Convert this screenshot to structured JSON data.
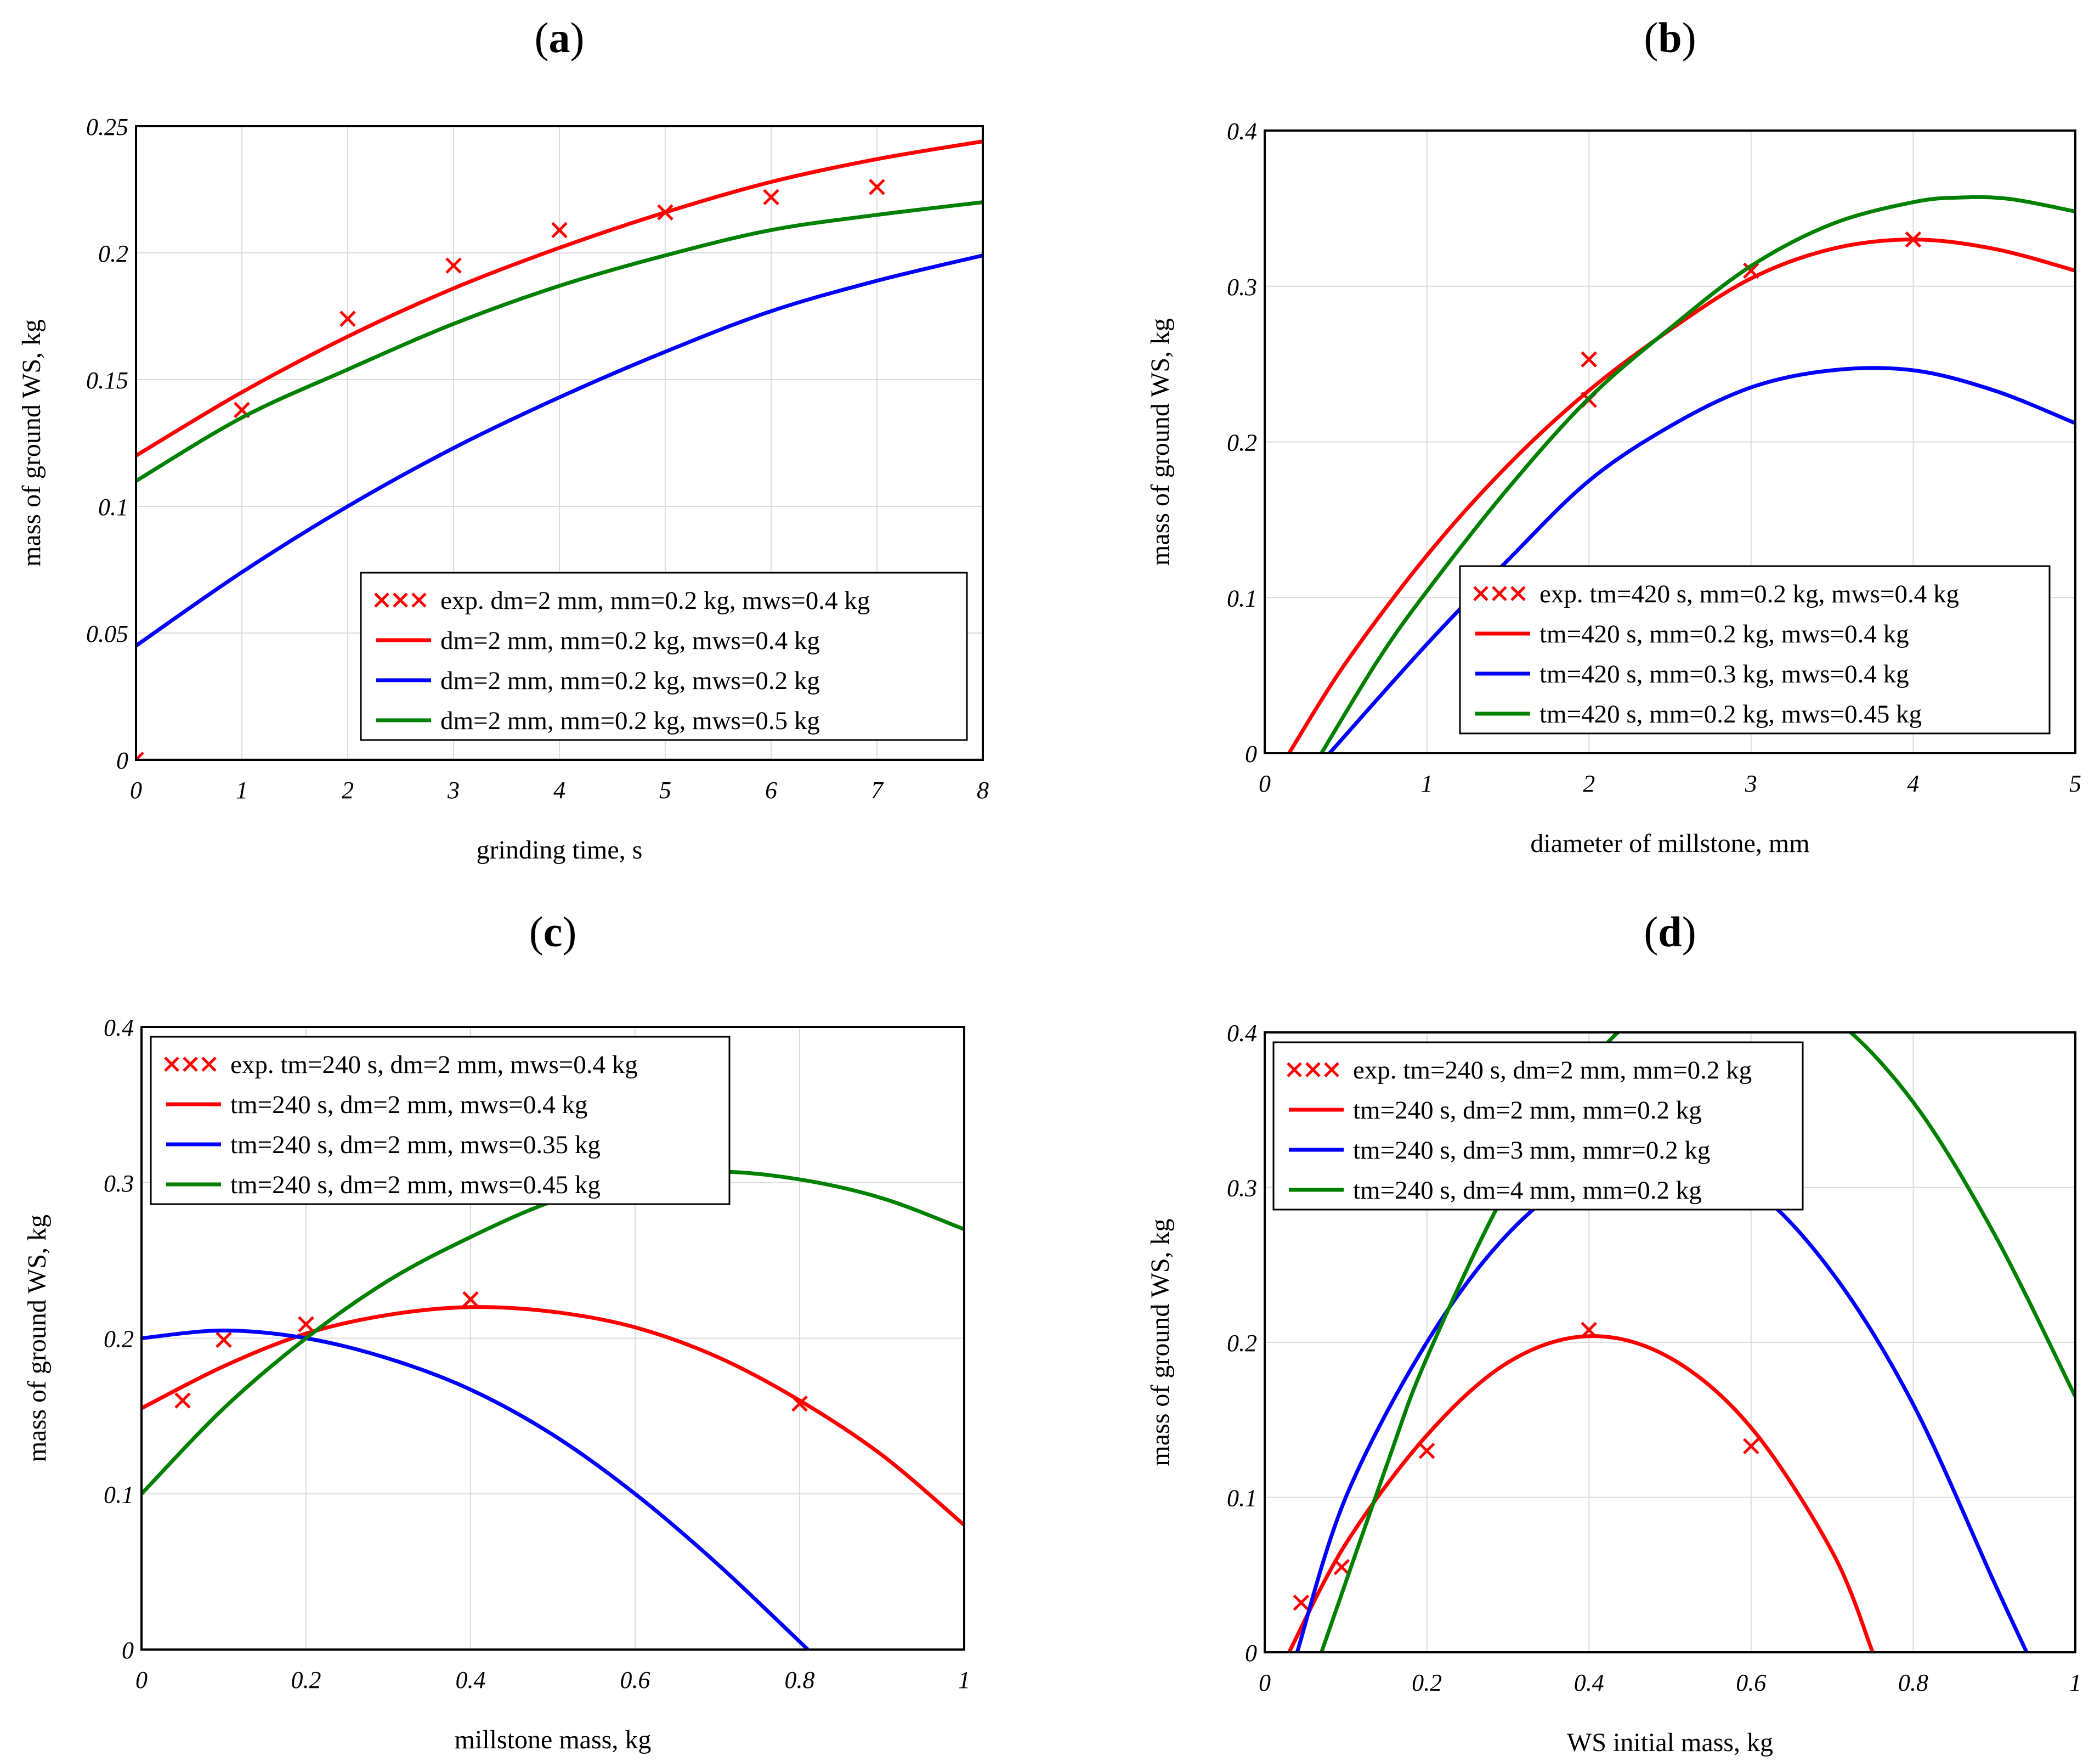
{
  "colors": {
    "red": "#ff0000",
    "blue": "#0000ff",
    "green": "#008000"
  },
  "chart_data": [
    {
      "type": "line",
      "panel": "(a)",
      "panel_letter": "a",
      "xlabel": "grinding time, s",
      "ylabel": "mass of ground WS, kg",
      "xlim": [
        0,
        8
      ],
      "ylim": [
        0,
        0.25
      ],
      "xticks": [
        0,
        1,
        2,
        3,
        4,
        5,
        6,
        7,
        8
      ],
      "yticks": [
        0,
        0.05,
        0.1,
        0.15,
        0.2,
        0.25
      ],
      "xtick_labels": [
        "0",
        "1",
        "2",
        "3",
        "4",
        "5",
        "6",
        "7",
        "8"
      ],
      "ytick_labels": [
        "0",
        "0.05",
        "0.1",
        "0.15",
        "0.2",
        "0.25"
      ],
      "grid": true,
      "legend_placement": "bottom-right",
      "series": [
        {
          "name": "exp. dm=2 mm, mm=0.2 kg, mws=0.4 kg",
          "kind": "markers",
          "color": "red",
          "x": [
            0,
            1,
            2,
            3,
            4,
            5,
            6,
            7
          ],
          "y": [
            0.0,
            0.138,
            0.174,
            0.195,
            0.209,
            0.216,
            0.222,
            0.226
          ]
        },
        {
          "name": "dm=2 mm, mm=0.2 kg, mws=0.4 kg",
          "kind": "line",
          "color": "red",
          "x": [
            0,
            1,
            2,
            3,
            4,
            5,
            6,
            7,
            8
          ],
          "y": [
            0.12,
            0.145,
            0.167,
            0.186,
            0.202,
            0.216,
            0.228,
            0.237,
            0.244
          ]
        },
        {
          "name": "dm=2 mm, mm=0.2 kg, mws=0.2 kg",
          "kind": "line",
          "color": "blue",
          "x": [
            0,
            1,
            2,
            3,
            4,
            5,
            6,
            7,
            8
          ],
          "y": [
            0.045,
            0.074,
            0.1,
            0.123,
            0.143,
            0.161,
            0.177,
            0.189,
            0.199
          ]
        },
        {
          "name": "dm=2 mm, mm=0.2 kg, mws=0.5 kg",
          "kind": "line",
          "color": "green",
          "x": [
            0,
            1,
            2,
            3,
            4,
            5,
            6,
            7,
            8
          ],
          "y": [
            0.11,
            0.135,
            0.154,
            0.172,
            0.187,
            0.199,
            0.209,
            0.215,
            0.22
          ]
        }
      ]
    },
    {
      "type": "line",
      "panel": "(b)",
      "panel_letter": "b",
      "xlabel": "diameter of millstone, mm",
      "ylabel": "mass of ground WS, kg",
      "xlim": [
        0,
        5
      ],
      "ylim": [
        0,
        0.4
      ],
      "xticks": [
        0,
        1,
        2,
        3,
        4,
        5
      ],
      "yticks": [
        0,
        0.1,
        0.2,
        0.3,
        0.4
      ],
      "xtick_labels": [
        "0",
        "1",
        "2",
        "3",
        "4",
        "5"
      ],
      "ytick_labels": [
        "0",
        "0.1",
        "0.2",
        "0.3",
        "0.4"
      ],
      "grid": true,
      "legend_placement": "bottom-right",
      "series": [
        {
          "name": "exp. tm=420 s, mm=0.2 kg, mws=0.4 kg",
          "kind": "markers",
          "color": "red",
          "x": [
            2,
            2,
            3,
            4
          ],
          "y": [
            0.253,
            0.227,
            0.31,
            0.33
          ]
        },
        {
          "name": "tm=420 s, mm=0.2 kg, mws=0.4 kg",
          "kind": "line",
          "color": "red",
          "x": [
            0.15,
            0.5,
            1,
            1.5,
            2,
            2.5,
            3,
            3.5,
            4,
            4.5,
            5
          ],
          "y": [
            0.0,
            0.058,
            0.127,
            0.185,
            0.233,
            0.272,
            0.305,
            0.324,
            0.33,
            0.324,
            0.31
          ]
        },
        {
          "name": "tm=420 s, mm=0.3 kg, mws=0.4 kg",
          "kind": "line",
          "color": "blue",
          "x": [
            0.4,
            1,
            1.5,
            2,
            2.5,
            3,
            3.5,
            4,
            4.5,
            5
          ],
          "y": [
            0.0,
            0.07,
            0.124,
            0.175,
            0.21,
            0.235,
            0.246,
            0.246,
            0.233,
            0.212
          ]
        },
        {
          "name": "tm=420 s, mm=0.2 kg, mws=0.45 kg",
          "kind": "line",
          "color": "green",
          "x": [
            0.35,
            0.7,
            1,
            1.5,
            2,
            2.5,
            3,
            3.5,
            4,
            4.3,
            4.6,
            5
          ],
          "y": [
            0.0,
            0.06,
            0.104,
            0.17,
            0.228,
            0.273,
            0.313,
            0.34,
            0.354,
            0.357,
            0.356,
            0.348
          ]
        }
      ]
    },
    {
      "type": "line",
      "panel": "(c)",
      "panel_letter": "c",
      "xlabel": "millstone mass, kg",
      "ylabel": "mass of ground WS, kg",
      "xlim": [
        0,
        1
      ],
      "ylim": [
        0,
        0.4
      ],
      "xticks": [
        0,
        0.2,
        0.4,
        0.6,
        0.8,
        1
      ],
      "yticks": [
        0,
        0.1,
        0.2,
        0.3,
        0.4
      ],
      "xtick_labels": [
        "0",
        "0.2",
        "0.4",
        "0.6",
        "0.8",
        "1"
      ],
      "ytick_labels": [
        "0",
        "0.1",
        "0.2",
        "0.3",
        "0.4"
      ],
      "grid": true,
      "legend_placement": "top-left",
      "series": [
        {
          "name": "exp. tm=240 s, dm=2 mm, mws=0.4 kg",
          "kind": "markers",
          "color": "red",
          "x": [
            0.05,
            0.1,
            0.2,
            0.4,
            0.8
          ],
          "y": [
            0.16,
            0.199,
            0.209,
            0.225,
            0.158
          ]
        },
        {
          "name": "tm=240 s, dm=2 mm, mws=0.4 kg",
          "kind": "line",
          "color": "red",
          "x": [
            0,
            0.1,
            0.2,
            0.3,
            0.4,
            0.5,
            0.6,
            0.7,
            0.8,
            0.9,
            1.0
          ],
          "y": [
            0.155,
            0.182,
            0.203,
            0.215,
            0.22,
            0.217,
            0.207,
            0.188,
            0.16,
            0.125,
            0.08
          ]
        },
        {
          "name": "tm=240 s, dm=2 mm, mws=0.35 kg",
          "kind": "line",
          "color": "blue",
          "x": [
            0,
            0.1,
            0.2,
            0.3,
            0.4,
            0.5,
            0.6,
            0.7,
            0.81
          ],
          "y": [
            0.2,
            0.205,
            0.2,
            0.187,
            0.167,
            0.138,
            0.1,
            0.055,
            0.0
          ]
        },
        {
          "name": "tm=240 s, dm=2 mm, mws=0.45 kg",
          "kind": "line",
          "color": "green",
          "x": [
            0,
            0.1,
            0.2,
            0.3,
            0.4,
            0.5,
            0.6,
            0.7,
            0.8,
            0.9,
            1.0
          ],
          "y": [
            0.1,
            0.155,
            0.2,
            0.237,
            0.265,
            0.288,
            0.302,
            0.307,
            0.302,
            0.29,
            0.27
          ]
        }
      ]
    },
    {
      "type": "line",
      "panel": "(d)",
      "panel_letter": "d",
      "xlabel": "WS initial mass, kg",
      "ylabel": "mass of ground WS, kg",
      "xlim": [
        0,
        1
      ],
      "ylim": [
        0,
        0.4
      ],
      "xticks": [
        0,
        0.2,
        0.4,
        0.6,
        0.8,
        1
      ],
      "yticks": [
        0,
        0.1,
        0.2,
        0.3,
        0.4
      ],
      "xtick_labels": [
        "0",
        "0.2",
        "0.4",
        "0.6",
        "0.8",
        "1"
      ],
      "ytick_labels": [
        "0",
        "0.1",
        "0.2",
        "0.3",
        "0.4"
      ],
      "grid": true,
      "legend_placement": "top-left",
      "series": [
        {
          "name": "exp. tm=240 s, dm=2 mm, mm=0.2 kg",
          "kind": "markers",
          "color": "red",
          "x": [
            0.045,
            0.095,
            0.2,
            0.4,
            0.6
          ],
          "y": [
            0.032,
            0.055,
            0.13,
            0.208,
            0.133
          ]
        },
        {
          "name": "tm=240 s, dm=2 mm, mm=0.2 kg",
          "kind": "line",
          "color": "red",
          "x": [
            0.03,
            0.1,
            0.2,
            0.3,
            0.4,
            0.5,
            0.6,
            0.7,
            0.75
          ],
          "y": [
            0.0,
            0.07,
            0.14,
            0.187,
            0.204,
            0.19,
            0.145,
            0.065,
            0.0
          ]
        },
        {
          "name": "tm=240 s, dm=3 mm, mmr=0.2 kg",
          "kind": "line",
          "color": "blue",
          "x": [
            0.04,
            0.1,
            0.2,
            0.3,
            0.4,
            0.5,
            0.6,
            0.7,
            0.8,
            0.9,
            0.94
          ],
          "y": [
            0.0,
            0.1,
            0.2,
            0.27,
            0.31,
            0.318,
            0.3,
            0.245,
            0.16,
            0.045,
            0.0
          ]
        },
        {
          "name": "tm=240 s, dm=4 mm, mm=0.2 kg",
          "kind": "line",
          "color": "green",
          "x": [
            0.07,
            0.15,
            0.2,
            0.3,
            0.4,
            0.5,
            0.6,
            0.7,
            0.8,
            0.9,
            1.0
          ],
          "y": [
            0.0,
            0.12,
            0.19,
            0.3,
            0.38,
            0.425,
            0.435,
            0.41,
            0.355,
            0.27,
            0.165
          ]
        }
      ]
    }
  ]
}
